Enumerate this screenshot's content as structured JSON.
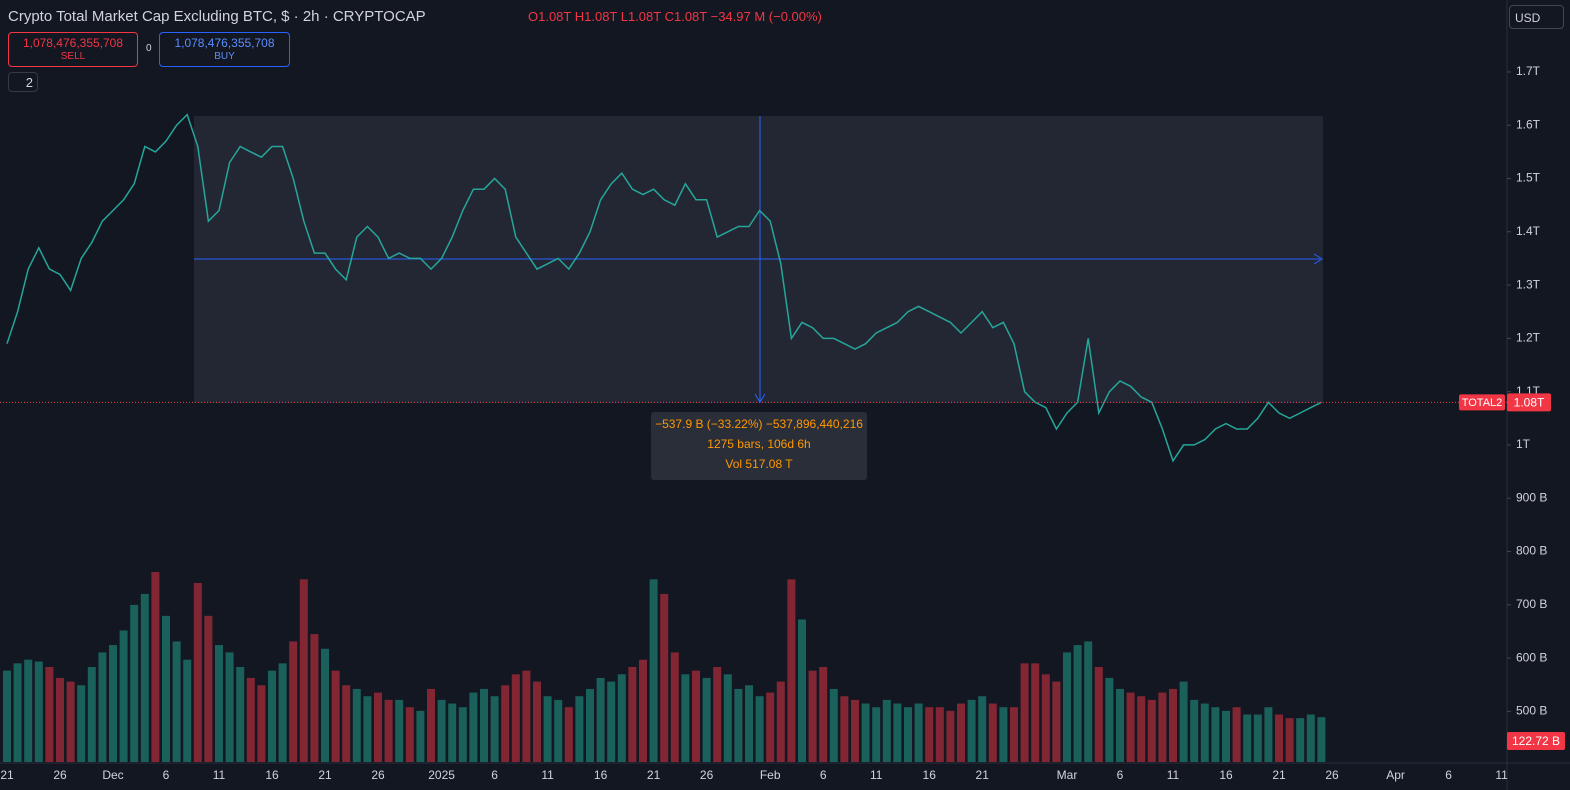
{
  "header": {
    "title": "Crypto Total Market Cap Excluding BTC, $ · 2h · CRYPTOCAP",
    "ohlc": "O1.08T H1.08T L1.08T C1.08T −34.97 M (−0.00%)",
    "sell_price": "1,078,476,355,708",
    "sell_label": "SELL",
    "spread": "0",
    "buy_price": "1,078,476,355,708",
    "buy_label": "BUY",
    "indicators_toggle": "2",
    "currency": "USD"
  },
  "measure": {
    "change": "−537.9 B (−33.22%) −537,896,440,216",
    "bars": "1275 bars, 106d 6h",
    "volume": "Vol 517.08 T"
  },
  "chart_data": {
    "type": "line",
    "up_color": "#22ab94",
    "down_color": "#f23645",
    "categories": [
      "21",
      null,
      null,
      null,
      null,
      "26",
      null,
      null,
      null,
      null,
      "Dec",
      null,
      null,
      null,
      null,
      "6",
      null,
      null,
      null,
      null,
      "11",
      null,
      null,
      null,
      null,
      "16",
      null,
      null,
      null,
      null,
      "21",
      null,
      null,
      null,
      null,
      "26",
      null,
      null,
      null,
      null,
      null,
      "2025",
      null,
      null,
      null,
      null,
      "6",
      null,
      null,
      null,
      null,
      "11",
      null,
      null,
      null,
      null,
      "16",
      null,
      null,
      null,
      null,
      "21",
      null,
      null,
      null,
      null,
      "26",
      null,
      null,
      null,
      null,
      null,
      "Feb",
      null,
      null,
      null,
      null,
      "6",
      null,
      null,
      null,
      null,
      "11",
      null,
      null,
      null,
      null,
      "16",
      null,
      null,
      null,
      null,
      "21",
      null,
      null,
      null,
      null,
      null,
      null,
      null,
      "Mar",
      null,
      null,
      null,
      null,
      "6",
      null,
      null,
      null,
      null,
      "11",
      null,
      null,
      null,
      null,
      "16",
      null,
      null,
      null,
      null,
      "21",
      null,
      null,
      null,
      null,
      "26",
      null,
      null,
      null,
      null,
      null,
      "Apr",
      null,
      null,
      null,
      null,
      "6",
      null,
      null,
      null,
      null,
      "11"
    ],
    "series": [
      {
        "name": "TOTAL2",
        "color": "#26a69a",
        "values": [
          1190,
          1250,
          1330,
          1370,
          1330,
          1320,
          1290,
          1350,
          1380,
          1420,
          1440,
          1460,
          1490,
          1560,
          1550,
          1570,
          1600,
          1620,
          1560,
          1420,
          1440,
          1530,
          1560,
          1550,
          1540,
          1560,
          1560,
          1500,
          1420,
          1360,
          1360,
          1330,
          1310,
          1390,
          1410,
          1390,
          1350,
          1360,
          1350,
          1350,
          1330,
          1350,
          1390,
          1440,
          1480,
          1480,
          1500,
          1480,
          1390,
          1360,
          1330,
          1340,
          1350,
          1330,
          1360,
          1400,
          1460,
          1490,
          1510,
          1480,
          1470,
          1480,
          1460,
          1450,
          1490,
          1460,
          1460,
          1390,
          1400,
          1410,
          1410,
          1440,
          1420,
          1340,
          1200,
          1230,
          1220,
          1200,
          1200,
          1190,
          1180,
          1190,
          1210,
          1220,
          1230,
          1250,
          1260,
          1250,
          1240,
          1230,
          1210,
          1230,
          1250,
          1220,
          1230,
          1190,
          1100,
          1080,
          1070,
          1030,
          1060,
          1080,
          1200,
          1060,
          1100,
          1120,
          1110,
          1090,
          1080,
          1030,
          970,
          1000,
          1000,
          1010,
          1030,
          1040,
          1030,
          1030,
          1050,
          1080,
          1060,
          1050,
          1060,
          1070,
          1080,
          null,
          null,
          null,
          null,
          null,
          null,
          null,
          null,
          null,
          null,
          null,
          null,
          null,
          null,
          null,
          null,
          null
        ]
      },
      {
        "name": "Volume",
        "axis": "y2",
        "color": "#26a69a",
        "values": [
          250,
          270,
          280,
          275,
          260,
          230,
          220,
          210,
          260,
          300,
          320,
          360,
          430,
          460,
          520,
          400,
          330,
          280,
          490,
          400,
          320,
          300,
          260,
          230,
          210,
          250,
          270,
          330,
          500,
          350,
          310,
          250,
          210,
          200,
          180,
          190,
          170,
          170,
          150,
          140,
          200,
          170,
          160,
          150,
          190,
          200,
          180,
          210,
          240,
          250,
          220,
          180,
          170,
          150,
          180,
          200,
          230,
          220,
          240,
          260,
          280,
          500,
          460,
          300,
          240,
          250,
          230,
          260,
          240,
          200,
          210,
          180,
          190,
          220,
          500,
          390,
          250,
          260,
          200,
          180,
          170,
          160,
          150,
          170,
          160,
          150,
          160,
          150,
          150,
          140,
          160,
          170,
          180,
          160,
          150,
          150,
          270,
          270,
          240,
          220,
          300,
          320,
          330,
          260,
          230,
          200,
          190,
          180,
          170,
          190,
          200,
          220,
          170,
          160,
          150,
          140,
          150,
          130,
          130,
          150,
          130,
          120,
          120,
          130,
          122.72,
          null,
          null,
          null,
          null,
          null,
          null,
          null,
          null,
          null,
          null,
          null,
          null,
          null,
          null,
          null,
          null,
          null
        ]
      }
    ],
    "ylim": [
      405,
      1835
    ],
    "yticks": [
      {
        "value": 500,
        "label": "500 B"
      },
      {
        "value": 600,
        "label": "600 B"
      },
      {
        "value": 700,
        "label": "700 B"
      },
      {
        "value": 800,
        "label": "800 B"
      },
      {
        "value": 900,
        "label": "900 B"
      },
      {
        "value": 1000,
        "label": "1T"
      },
      {
        "value": 1100,
        "label": "1.1T"
      },
      {
        "value": 1200,
        "label": "1.2T"
      },
      {
        "value": 1300,
        "label": "1.3T"
      },
      {
        "value": 1400,
        "label": "1.4T"
      },
      {
        "value": 1500,
        "label": "1.5T"
      },
      {
        "value": 1600,
        "label": "1.6T"
      },
      {
        "value": 1700,
        "label": "1.7T"
      }
    ],
    "y2lim": [
      0,
      520
    ],
    "last_price": {
      "value": 1080,
      "label": "1.08T"
    },
    "last_volume": {
      "value": 122.72,
      "label": "122.72 B"
    }
  }
}
